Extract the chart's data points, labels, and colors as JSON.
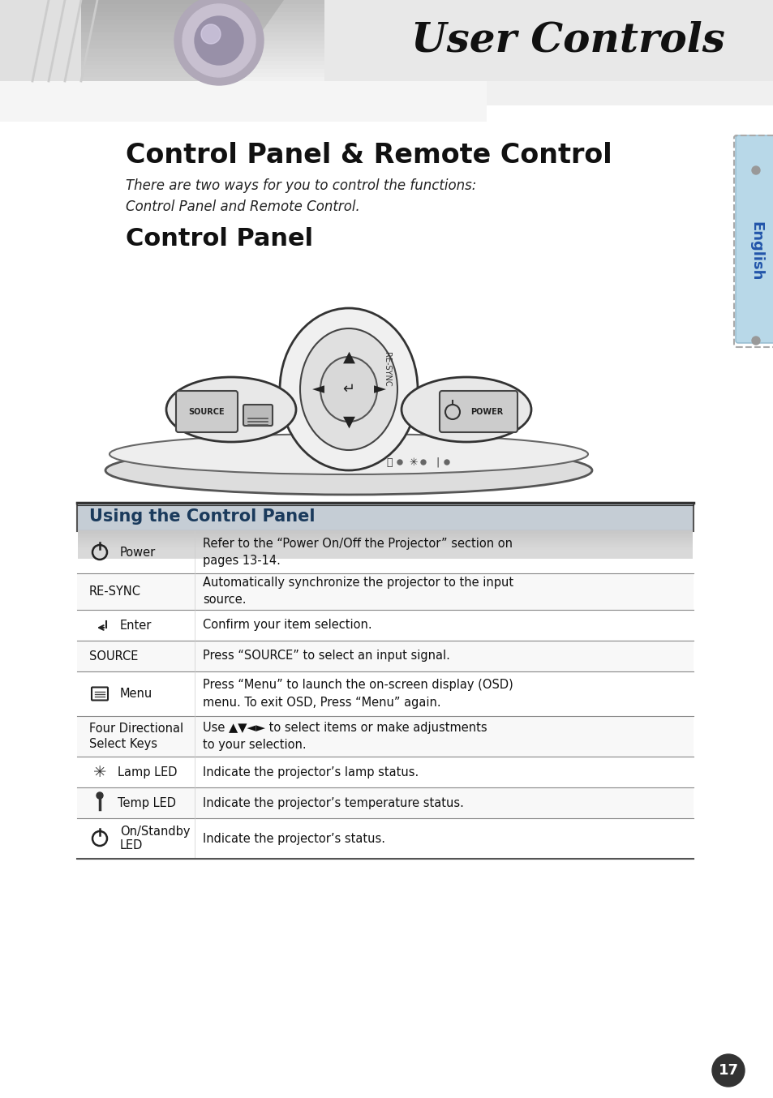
{
  "title_header": "User Controls",
  "section_title": "Control Panel & Remote Control",
  "subtitle": "There are two ways for you to control the functions:\nControl Panel and Remote Control.",
  "section2_title": "Control Panel",
  "table_header": "Using the Control Panel",
  "table_rows": [
    {
      "icon": "power",
      "label": "Power",
      "description": "Refer to the “Power On/Off the Projector” section on\npages 13-14."
    },
    {
      "icon": null,
      "label": "RE-SYNC",
      "description": "Automatically synchronize the projector to the input\nsource."
    },
    {
      "icon": "enter",
      "label": "Enter",
      "description": "Confirm your item selection."
    },
    {
      "icon": null,
      "label": "SOURCE",
      "description": "Press “SOURCE” to select an input signal."
    },
    {
      "icon": "menu",
      "label": "Menu",
      "description": "Press “Menu” to launch the on-screen display (OSD)\nmenu. To exit OSD, Press “Menu” again."
    },
    {
      "icon": null,
      "label": "Four Directional\nSelect Keys",
      "description": "Use ▲▼◄► to select items or make adjustments\nto your selection."
    },
    {
      "icon": "lamp",
      "label": "Lamp LED",
      "description": "Indicate the projector’s lamp status."
    },
    {
      "icon": "temp",
      "label": "Temp LED",
      "description": "Indicate the projector’s temperature status."
    },
    {
      "icon": "standby",
      "label": "On/Standby\nLED",
      "description": "Indicate the projector’s status."
    }
  ],
  "page_number": "17",
  "bg_color": "#ffffff",
  "header_bg": "#d0d8e0",
  "table_header_bg": "#c8d4dc",
  "english_tab_color": "#b8d8e8",
  "divider_color": "#555555"
}
